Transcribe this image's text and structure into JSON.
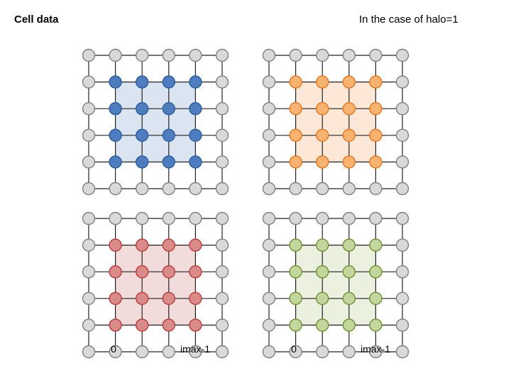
{
  "header": {
    "title": "Cell data",
    "note": "In the case of halo=1"
  },
  "grid": {
    "rows": 6,
    "cols": 6,
    "halo": 1
  },
  "panels": [
    {
      "id": "blue",
      "fill": "#4d7cbf",
      "stroke": "#2c5d9e",
      "region": "#dbe5f2"
    },
    {
      "id": "orange",
      "fill": "#f9b370",
      "stroke": "#e8741c",
      "region": "#fde8d8"
    },
    {
      "id": "red",
      "fill": "#da8a88",
      "stroke": "#b83c3a",
      "region": "#f2dcdb"
    },
    {
      "id": "green",
      "fill": "#c3d69b",
      "stroke": "#6f8f32",
      "region": "#ebf1de"
    }
  ],
  "halo_colors": {
    "fill": "#d9d9d9",
    "stroke": "#808080"
  },
  "line_color": "#222222",
  "axis_labels": {
    "start": "0",
    "end": "imax-1"
  }
}
